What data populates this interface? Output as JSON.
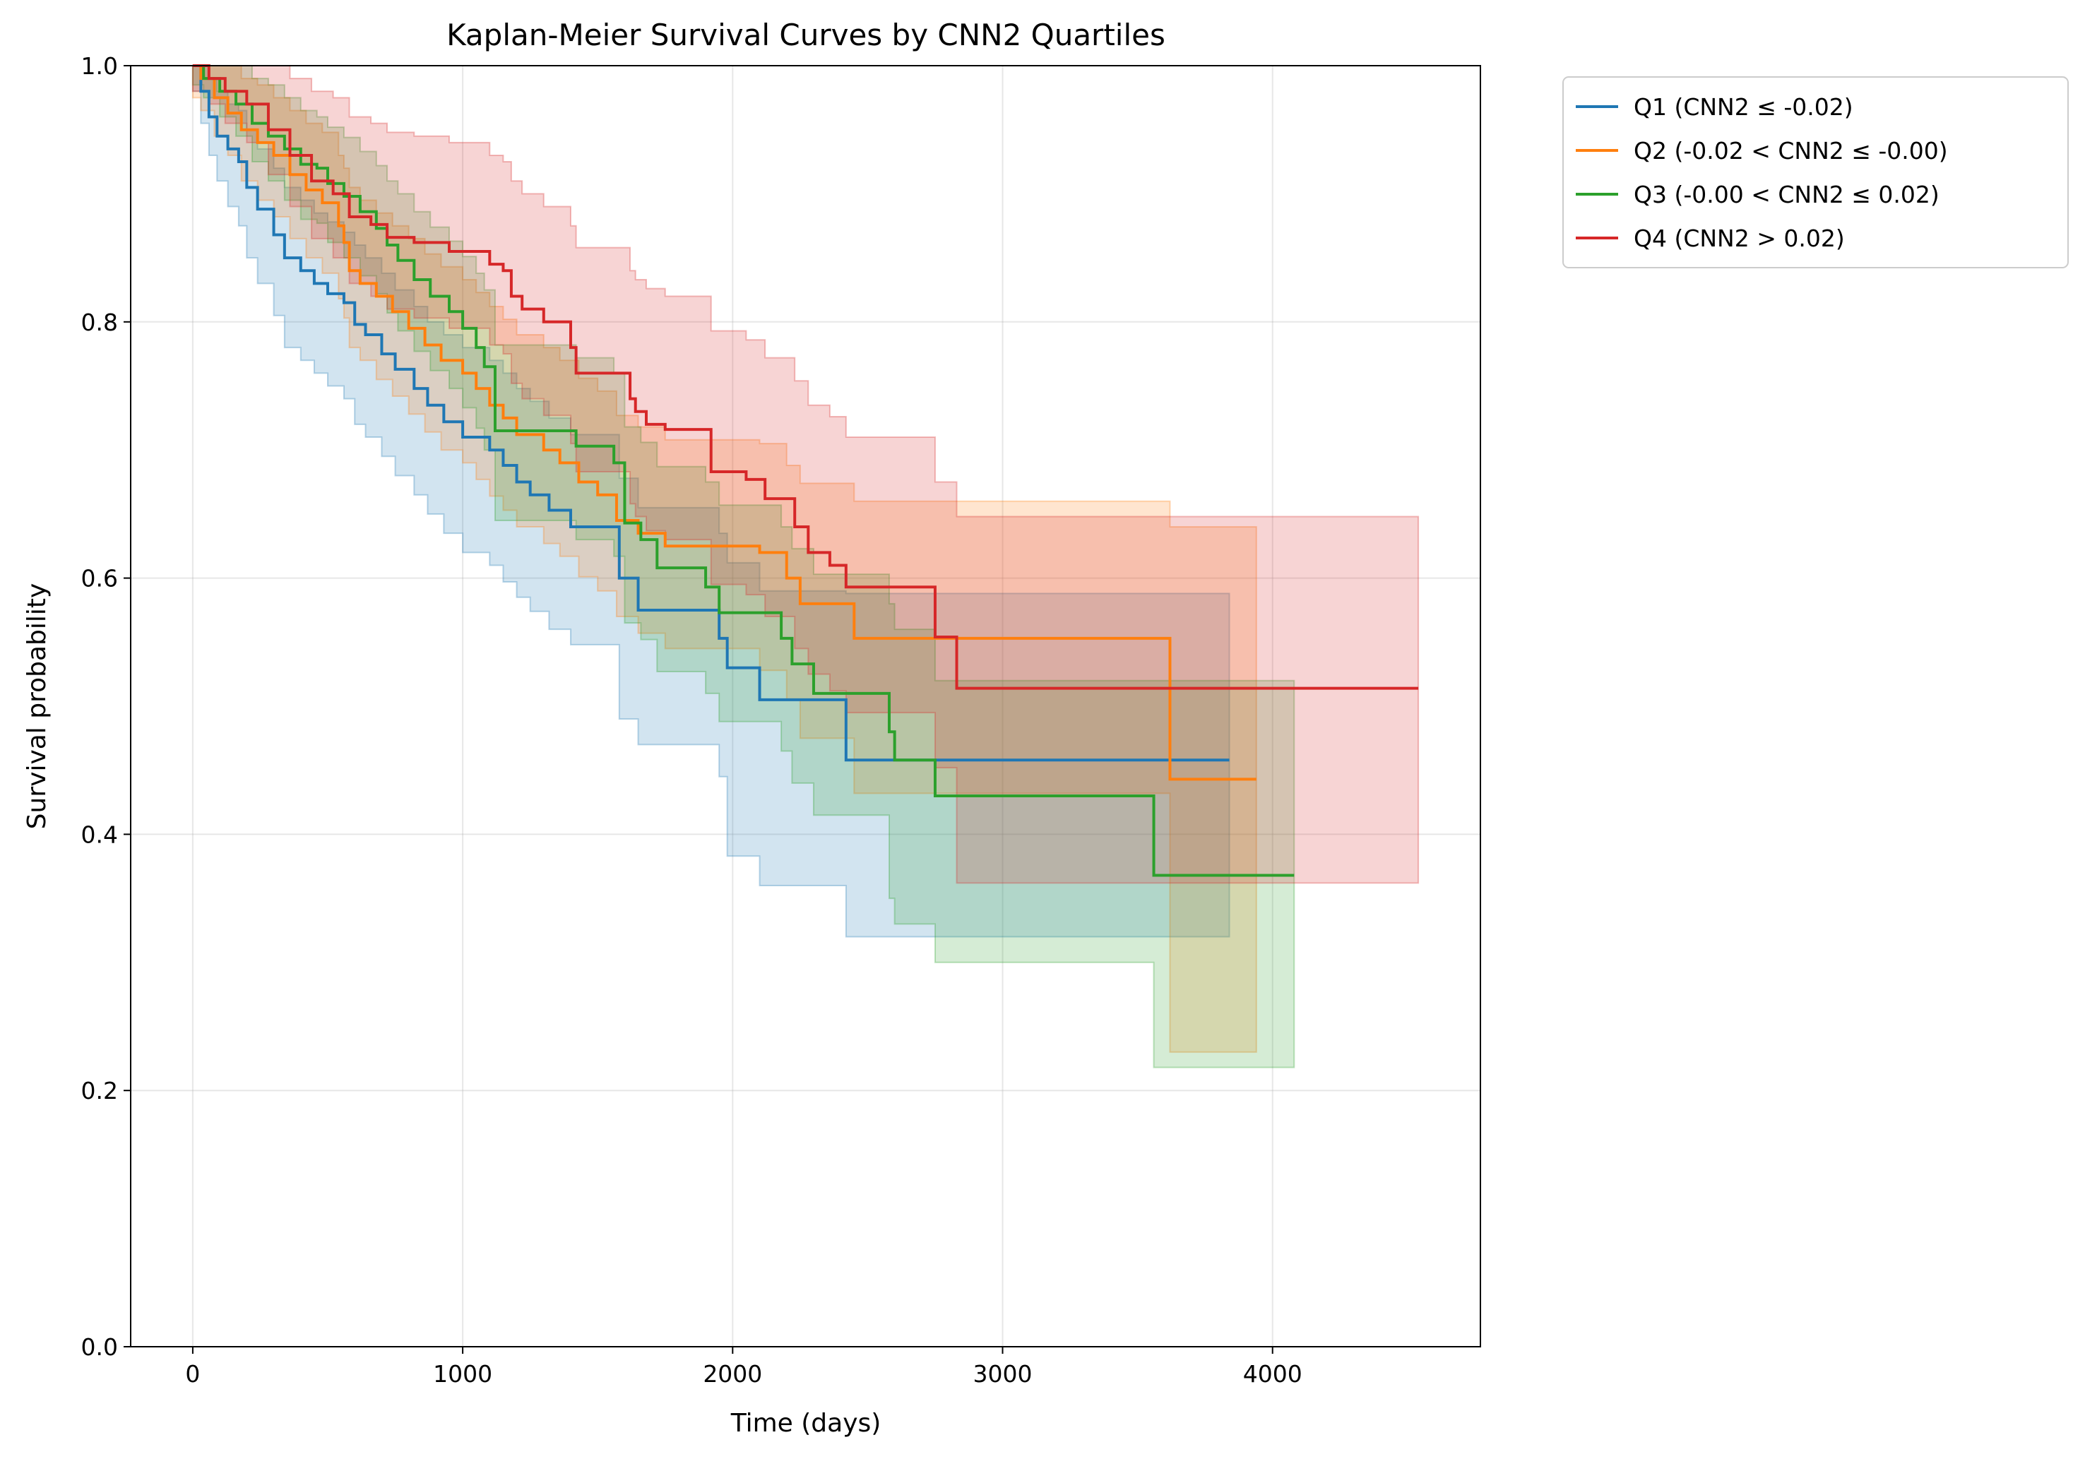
{
  "chart_data": {
    "type": "line",
    "step": true,
    "title": "Kaplan-Meier Survival Curves by CNN2 Quartiles",
    "xlabel": "Time (days)",
    "ylabel": "Survival probability",
    "xlim": [
      -230,
      4770
    ],
    "ylim": [
      0.0,
      1.0
    ],
    "xticks": [
      0,
      1000,
      2000,
      3000,
      4000
    ],
    "xtick_labels": [
      "0",
      "1000",
      "2000",
      "3000",
      "4000"
    ],
    "yticks": [
      0.0,
      0.2,
      0.4,
      0.6,
      0.8,
      1.0
    ],
    "ytick_labels": [
      "0.0",
      "0.2",
      "0.4",
      "0.6",
      "0.8",
      "1.0"
    ],
    "grid": true,
    "legend_position": "outside-top-right",
    "series": [
      {
        "name": "Q1 (CNN2 ≤ -0.02)",
        "color": "#1f77b4",
        "x": [
          0,
          30,
          60,
          90,
          130,
          170,
          200,
          240,
          300,
          340,
          400,
          450,
          500,
          560,
          600,
          640,
          700,
          750,
          820,
          870,
          930,
          1000,
          1100,
          1150,
          1200,
          1250,
          1320,
          1400,
          1580,
          1650,
          1950,
          1980,
          2100,
          2420,
          3840
        ],
        "y": [
          1.0,
          0.98,
          0.96,
          0.945,
          0.935,
          0.925,
          0.905,
          0.888,
          0.868,
          0.85,
          0.84,
          0.83,
          0.822,
          0.815,
          0.798,
          0.79,
          0.775,
          0.763,
          0.748,
          0.735,
          0.722,
          0.71,
          0.7,
          0.688,
          0.675,
          0.665,
          0.653,
          0.64,
          0.6,
          0.575,
          0.553,
          0.53,
          0.505,
          0.458,
          0.458
        ],
        "ci_upper": [
          1.0,
          1.0,
          0.99,
          0.98,
          0.97,
          0.965,
          0.95,
          0.935,
          0.92,
          0.905,
          0.895,
          0.885,
          0.878,
          0.87,
          0.86,
          0.85,
          0.838,
          0.825,
          0.812,
          0.8,
          0.79,
          0.78,
          0.77,
          0.76,
          0.748,
          0.738,
          0.725,
          0.712,
          0.678,
          0.655,
          0.635,
          0.612,
          0.59,
          0.588,
          0.588
        ],
        "ci_lower": [
          0.98,
          0.955,
          0.93,
          0.91,
          0.89,
          0.875,
          0.85,
          0.83,
          0.805,
          0.78,
          0.77,
          0.76,
          0.75,
          0.74,
          0.72,
          0.71,
          0.695,
          0.68,
          0.665,
          0.65,
          0.635,
          0.62,
          0.61,
          0.597,
          0.585,
          0.574,
          0.56,
          0.548,
          0.49,
          0.47,
          0.445,
          0.383,
          0.36,
          0.32,
          0.32
        ]
      },
      {
        "name": "Q2 (-0.02 < CNN2 ≤ -0.00)",
        "color": "#ff7f0e",
        "x": [
          0,
          30,
          80,
          130,
          180,
          240,
          300,
          360,
          420,
          480,
          540,
          560,
          580,
          620,
          680,
          740,
          800,
          860,
          920,
          1000,
          1050,
          1100,
          1150,
          1200,
          1300,
          1360,
          1430,
          1500,
          1570,
          1650,
          1750,
          2100,
          2200,
          2250,
          2450,
          2800,
          3620,
          3940
        ],
        "y": [
          1.0,
          0.99,
          0.975,
          0.963,
          0.95,
          0.94,
          0.93,
          0.915,
          0.903,
          0.893,
          0.875,
          0.862,
          0.84,
          0.83,
          0.82,
          0.808,
          0.795,
          0.782,
          0.77,
          0.76,
          0.748,
          0.735,
          0.725,
          0.712,
          0.7,
          0.69,
          0.675,
          0.665,
          0.645,
          0.635,
          0.625,
          0.62,
          0.6,
          0.58,
          0.553,
          0.553,
          0.443,
          0.443
        ],
        "ci_upper": [
          1.0,
          1.0,
          1.0,
          1.0,
          0.99,
          0.985,
          0.975,
          0.965,
          0.955,
          0.948,
          0.93,
          0.92,
          0.905,
          0.895,
          0.885,
          0.875,
          0.865,
          0.853,
          0.843,
          0.833,
          0.823,
          0.812,
          0.802,
          0.79,
          0.78,
          0.77,
          0.756,
          0.746,
          0.727,
          0.718,
          0.708,
          0.705,
          0.688,
          0.674,
          0.66,
          0.66,
          0.64,
          0.64
        ],
        "ci_lower": [
          0.975,
          0.965,
          0.945,
          0.93,
          0.91,
          0.895,
          0.882,
          0.865,
          0.85,
          0.838,
          0.818,
          0.803,
          0.78,
          0.77,
          0.755,
          0.742,
          0.728,
          0.714,
          0.7,
          0.69,
          0.677,
          0.664,
          0.653,
          0.64,
          0.627,
          0.617,
          0.601,
          0.59,
          0.57,
          0.557,
          0.545,
          0.528,
          0.505,
          0.475,
          0.432,
          0.432,
          0.23,
          0.23
        ]
      },
      {
        "name": "Q3 (-0.00 < CNN2 ≤ 0.02)",
        "color": "#2ca02c",
        "x": [
          0,
          40,
          100,
          160,
          220,
          280,
          340,
          400,
          460,
          500,
          560,
          620,
          680,
          720,
          760,
          820,
          880,
          950,
          1000,
          1050,
          1080,
          1120,
          1420,
          1560,
          1600,
          1660,
          1720,
          1900,
          1950,
          2180,
          2220,
          2300,
          2360,
          2580,
          2600,
          2750,
          3560,
          4080
        ],
        "y": [
          1.0,
          0.99,
          0.98,
          0.97,
          0.955,
          0.945,
          0.935,
          0.923,
          0.92,
          0.908,
          0.898,
          0.886,
          0.873,
          0.86,
          0.848,
          0.833,
          0.82,
          0.808,
          0.795,
          0.78,
          0.765,
          0.715,
          0.703,
          0.69,
          0.643,
          0.63,
          0.608,
          0.593,
          0.573,
          0.553,
          0.533,
          0.51,
          0.51,
          0.48,
          0.458,
          0.43,
          0.368,
          0.368
        ],
        "ci_upper": [
          1.0,
          1.0,
          1.0,
          1.0,
          0.99,
          0.985,
          0.975,
          0.965,
          0.96,
          0.952,
          0.944,
          0.933,
          0.922,
          0.91,
          0.9,
          0.886,
          0.874,
          0.863,
          0.851,
          0.838,
          0.825,
          0.782,
          0.772,
          0.76,
          0.718,
          0.706,
          0.687,
          0.675,
          0.657,
          0.64,
          0.623,
          0.603,
          0.603,
          0.58,
          0.56,
          0.52,
          0.52,
          0.52
        ],
        "ci_lower": [
          0.985,
          0.975,
          0.96,
          0.945,
          0.925,
          0.91,
          0.895,
          0.88,
          0.877,
          0.862,
          0.85,
          0.836,
          0.822,
          0.807,
          0.793,
          0.777,
          0.762,
          0.748,
          0.733,
          0.717,
          0.7,
          0.645,
          0.63,
          0.617,
          0.565,
          0.552,
          0.527,
          0.51,
          0.488,
          0.465,
          0.44,
          0.415,
          0.415,
          0.35,
          0.33,
          0.3,
          0.218,
          0.218
        ]
      },
      {
        "name": "Q4 (CNN2 > 0.02)",
        "color": "#d62728",
        "x": [
          0,
          60,
          120,
          200,
          280,
          360,
          440,
          520,
          580,
          660,
          720,
          820,
          950,
          1100,
          1150,
          1180,
          1220,
          1300,
          1400,
          1420,
          1620,
          1640,
          1680,
          1750,
          1920,
          2050,
          2120,
          2230,
          2280,
          2360,
          2420,
          2750,
          2830,
          4540
        ],
        "y": [
          1.0,
          0.99,
          0.98,
          0.97,
          0.95,
          0.93,
          0.91,
          0.9,
          0.882,
          0.876,
          0.866,
          0.862,
          0.855,
          0.845,
          0.84,
          0.82,
          0.81,
          0.8,
          0.78,
          0.76,
          0.74,
          0.73,
          0.72,
          0.716,
          0.683,
          0.677,
          0.662,
          0.64,
          0.62,
          0.61,
          0.593,
          0.554,
          0.514,
          0.514
        ],
        "ci_upper": [
          1.0,
          1.0,
          1.0,
          1.0,
          1.0,
          0.99,
          0.98,
          0.975,
          0.96,
          0.955,
          0.948,
          0.945,
          0.94,
          0.93,
          0.925,
          0.91,
          0.9,
          0.89,
          0.875,
          0.858,
          0.84,
          0.833,
          0.826,
          0.82,
          0.793,
          0.786,
          0.772,
          0.754,
          0.735,
          0.726,
          0.71,
          0.675,
          0.648,
          0.648
        ],
        "ci_lower": [
          0.98,
          0.97,
          0.955,
          0.94,
          0.915,
          0.89,
          0.865,
          0.85,
          0.83,
          0.82,
          0.81,
          0.803,
          0.795,
          0.782,
          0.775,
          0.752,
          0.74,
          0.727,
          0.705,
          0.683,
          0.658,
          0.648,
          0.637,
          0.63,
          0.595,
          0.587,
          0.57,
          0.545,
          0.525,
          0.512,
          0.495,
          0.452,
          0.362,
          0.362
        ]
      }
    ]
  }
}
